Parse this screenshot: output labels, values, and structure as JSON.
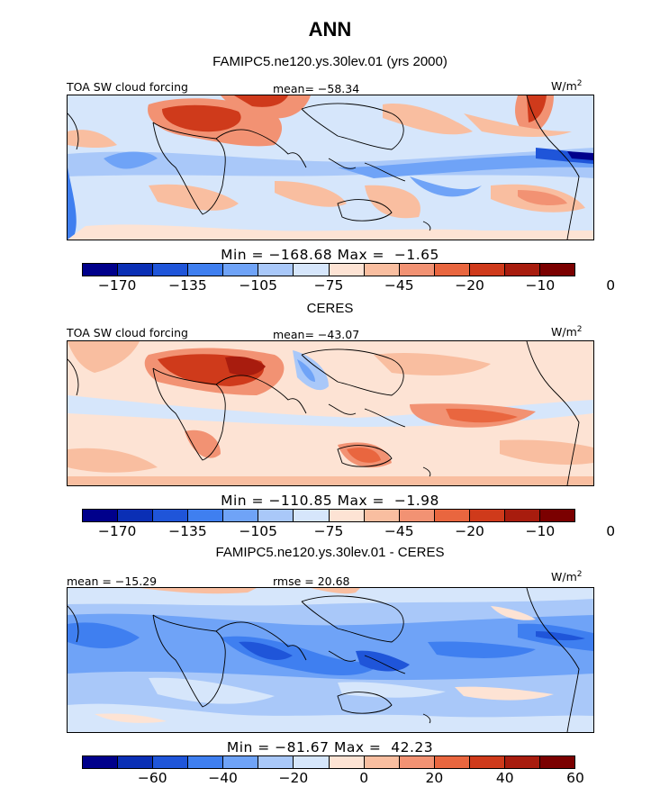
{
  "figure": {
    "title": "ANN",
    "panels": [
      {
        "heading": "FAMIPC5.ne120.ys.30lev.01 (yrs 2000)",
        "left_label": "TOA SW cloud forcing",
        "center_label": "mean= −58.34",
        "units": "W/m",
        "units_sup": "2",
        "minmax": "Min = −168.68 Max =  −1.65",
        "cbar_ticks": [
          "−170",
          "−135",
          "−105",
          "−75",
          "−45",
          "−20",
          "−10",
          "0"
        ],
        "colors": [
          "#00008b",
          "#0a2fb5",
          "#1f55d9",
          "#3f7ff0",
          "#6fa3f7",
          "#a9c8f9",
          "#d6e6fb",
          "#fde3d4",
          "#f9bea0",
          "#f29273",
          "#e9663f",
          "#cf3a1b",
          "#a81c0e",
          "#7b0000"
        ]
      },
      {
        "heading": "CERES",
        "left_label": "TOA SW cloud forcing",
        "center_label": "mean= −43.07",
        "units": "W/m",
        "units_sup": "2",
        "minmax": "Min = −110.85 Max =  −1.98",
        "cbar_ticks": [
          "−170",
          "−135",
          "−105",
          "−75",
          "−45",
          "−20",
          "−10",
          "0"
        ],
        "colors": [
          "#00008b",
          "#0a2fb5",
          "#1f55d9",
          "#3f7ff0",
          "#6fa3f7",
          "#a9c8f9",
          "#d6e6fb",
          "#fde3d4",
          "#f9bea0",
          "#f29273",
          "#e9663f",
          "#cf3a1b",
          "#a81c0e",
          "#7b0000"
        ]
      },
      {
        "heading": "FAMIPC5.ne120.ys.30lev.01 - CERES",
        "left_label": "mean = −15.29",
        "center_label": "rmse =  20.68",
        "units": "W/m",
        "units_sup": "2",
        "minmax": "Min = −81.67 Max =  42.23",
        "cbar_ticks": [
          "−60",
          "−40",
          "−20",
          "0",
          "20",
          "40",
          "60"
        ],
        "colors": [
          "#00008b",
          "#0a2fb5",
          "#1f55d9",
          "#3f7ff0",
          "#6fa3f7",
          "#a9c8f9",
          "#d6e6fb",
          "#fde3d4",
          "#f9bea0",
          "#f29273",
          "#e9663f",
          "#cf3a1b",
          "#a81c0e",
          "#7b0000"
        ]
      }
    ]
  }
}
